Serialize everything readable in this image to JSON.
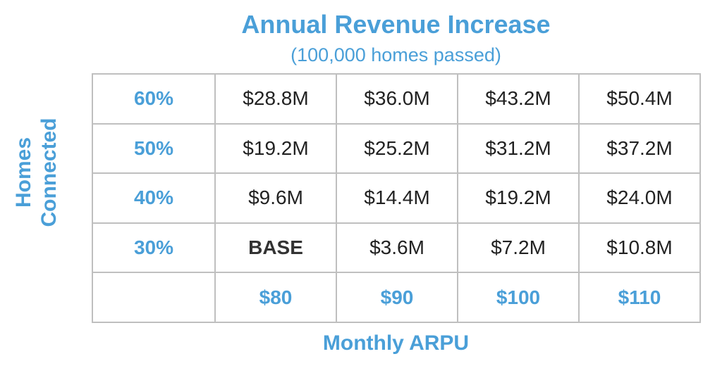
{
  "chart_data": {
    "type": "table",
    "title": "Annual Revenue Increase",
    "subtitle": "(100,000 homes passed)",
    "ylabel_line1": "Homes",
    "ylabel_line2": "Connected",
    "xlabel": "Monthly ARPU",
    "row_headers": [
      "60%",
      "50%",
      "40%",
      "30%"
    ],
    "column_headers": [
      "$80",
      "$90",
      "$100",
      "$110"
    ],
    "cells": [
      [
        "$28.8M",
        "$36.0M",
        "$43.2M",
        "$50.4M"
      ],
      [
        "$19.2M",
        "$25.2M",
        "$31.2M",
        "$37.2M"
      ],
      [
        "$9.6M",
        "$14.4M",
        "$19.2M",
        "$24.0M"
      ],
      [
        "BASE",
        "$3.6M",
        "$7.2M",
        "$10.8M"
      ]
    ],
    "accent_color": "#4a9fd8",
    "grid_color": "#bfbfbf"
  }
}
